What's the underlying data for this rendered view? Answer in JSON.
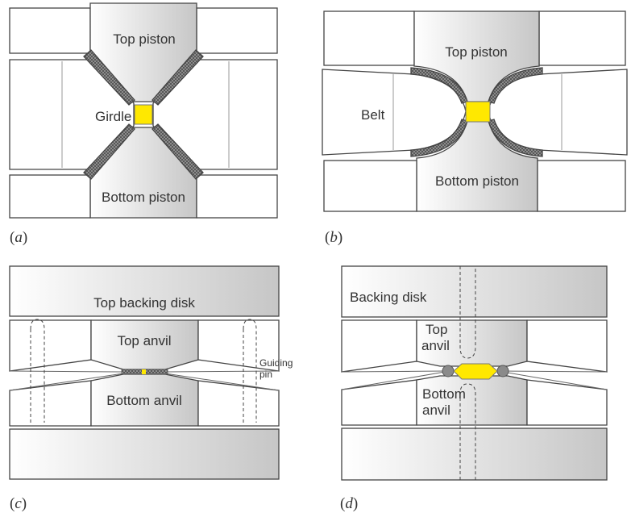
{
  "colors": {
    "outline": "#444444",
    "block_fill": "#ffffff",
    "gradient_light": "#ffffff",
    "gradient_dark": "#c8c8c8",
    "sample": "#ffe800",
    "gasket": "#8a8a8a",
    "text": "#333333"
  },
  "panels": {
    "a": {
      "caption": "a",
      "labels": {
        "top_piston": "Top piston",
        "girdle": "Girdle",
        "bottom_piston": "Bottom piston"
      }
    },
    "b": {
      "caption": "b",
      "labels": {
        "top_piston": "Top piston",
        "belt": "Belt",
        "bottom_piston": "Bottom piston"
      }
    },
    "c": {
      "caption": "c",
      "labels": {
        "top_backing_disk": "Top backing disk",
        "top_anvil": "Top anvil",
        "bottom_anvil": "Bottom anvil",
        "guiding": "Guiding",
        "pin": "pin"
      }
    },
    "d": {
      "caption": "d",
      "labels": {
        "backing_disk": "Backing disk",
        "top": "Top",
        "anvil_top": "anvil",
        "bottom": "Bottom",
        "anvil_bottom": "anvil"
      }
    }
  }
}
